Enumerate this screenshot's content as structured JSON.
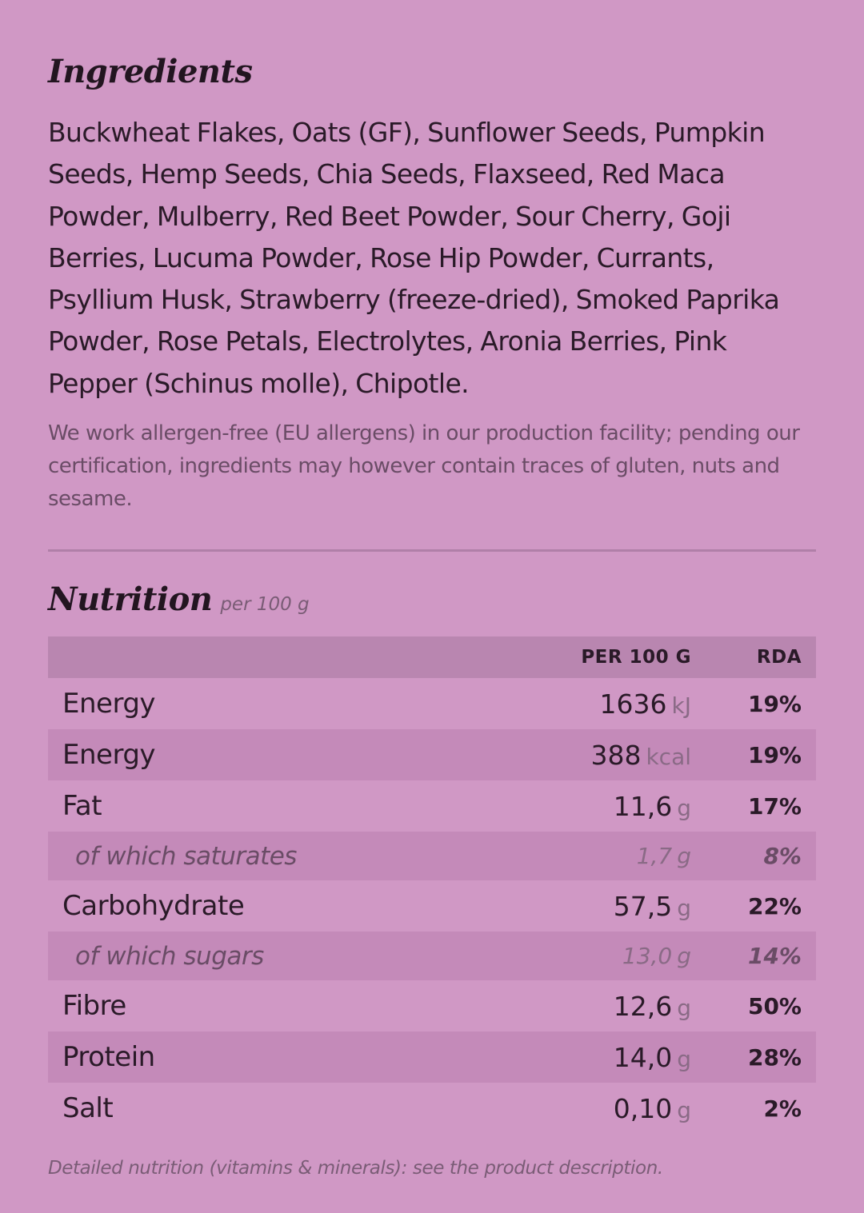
{
  "ingredients": {
    "title": "Ingredients",
    "list": "Buckwheat Flakes, Oats (GF), Sunflower Seeds, Pumpkin Seeds, Hemp Seeds, Chia Seeds, Flaxseed, Red Maca Powder, Mulberry, Red Beet Powder, Sour Cherry, Goji Berries, Lucuma Powder, Rose Hip Powder, Currants, Psyllium Husk, Strawberry (freeze-dried), Smoked Paprika Powder, Rose Petals, Electrolytes, Aronia Berries, Pink Pepper (Schinus molle), Chipotle.",
    "allergen_note": "We work allergen-free (EU allergens) in our production facility; pending our certification, ingredients may however contain traces of gluten, nuts and sesame."
  },
  "nutrition": {
    "title": "Nutrition",
    "subtitle": "per 100 g",
    "headers": {
      "per100": "PER 100 G",
      "rda": "RDA"
    },
    "rows": [
      {
        "name": "Energy",
        "value": "1636",
        "unit": "kJ",
        "rda": "19%"
      },
      {
        "name": "Energy",
        "value": "388",
        "unit": "kcal",
        "rda": "19%"
      },
      {
        "name": "Fat",
        "value": "11,6",
        "unit": "g",
        "rda": "17%"
      },
      {
        "name": "of which saturates",
        "value": "1,7",
        "unit": "g",
        "rda": "8%"
      },
      {
        "name": "Carbohydrate",
        "value": "57,5",
        "unit": "g",
        "rda": "22%"
      },
      {
        "name": "of which sugars",
        "value": "13,0",
        "unit": "g",
        "rda": "14%"
      },
      {
        "name": "Fibre",
        "value": "12,6",
        "unit": "g",
        "rda": "50%"
      },
      {
        "name": "Protein",
        "value": "14,0",
        "unit": "g",
        "rda": "28%"
      },
      {
        "name": "Salt",
        "value": "0,10",
        "unit": "g",
        "rda": "2%"
      }
    ],
    "footnote": "Detailed nutrition (vitamins & minerals): see the product description."
  }
}
